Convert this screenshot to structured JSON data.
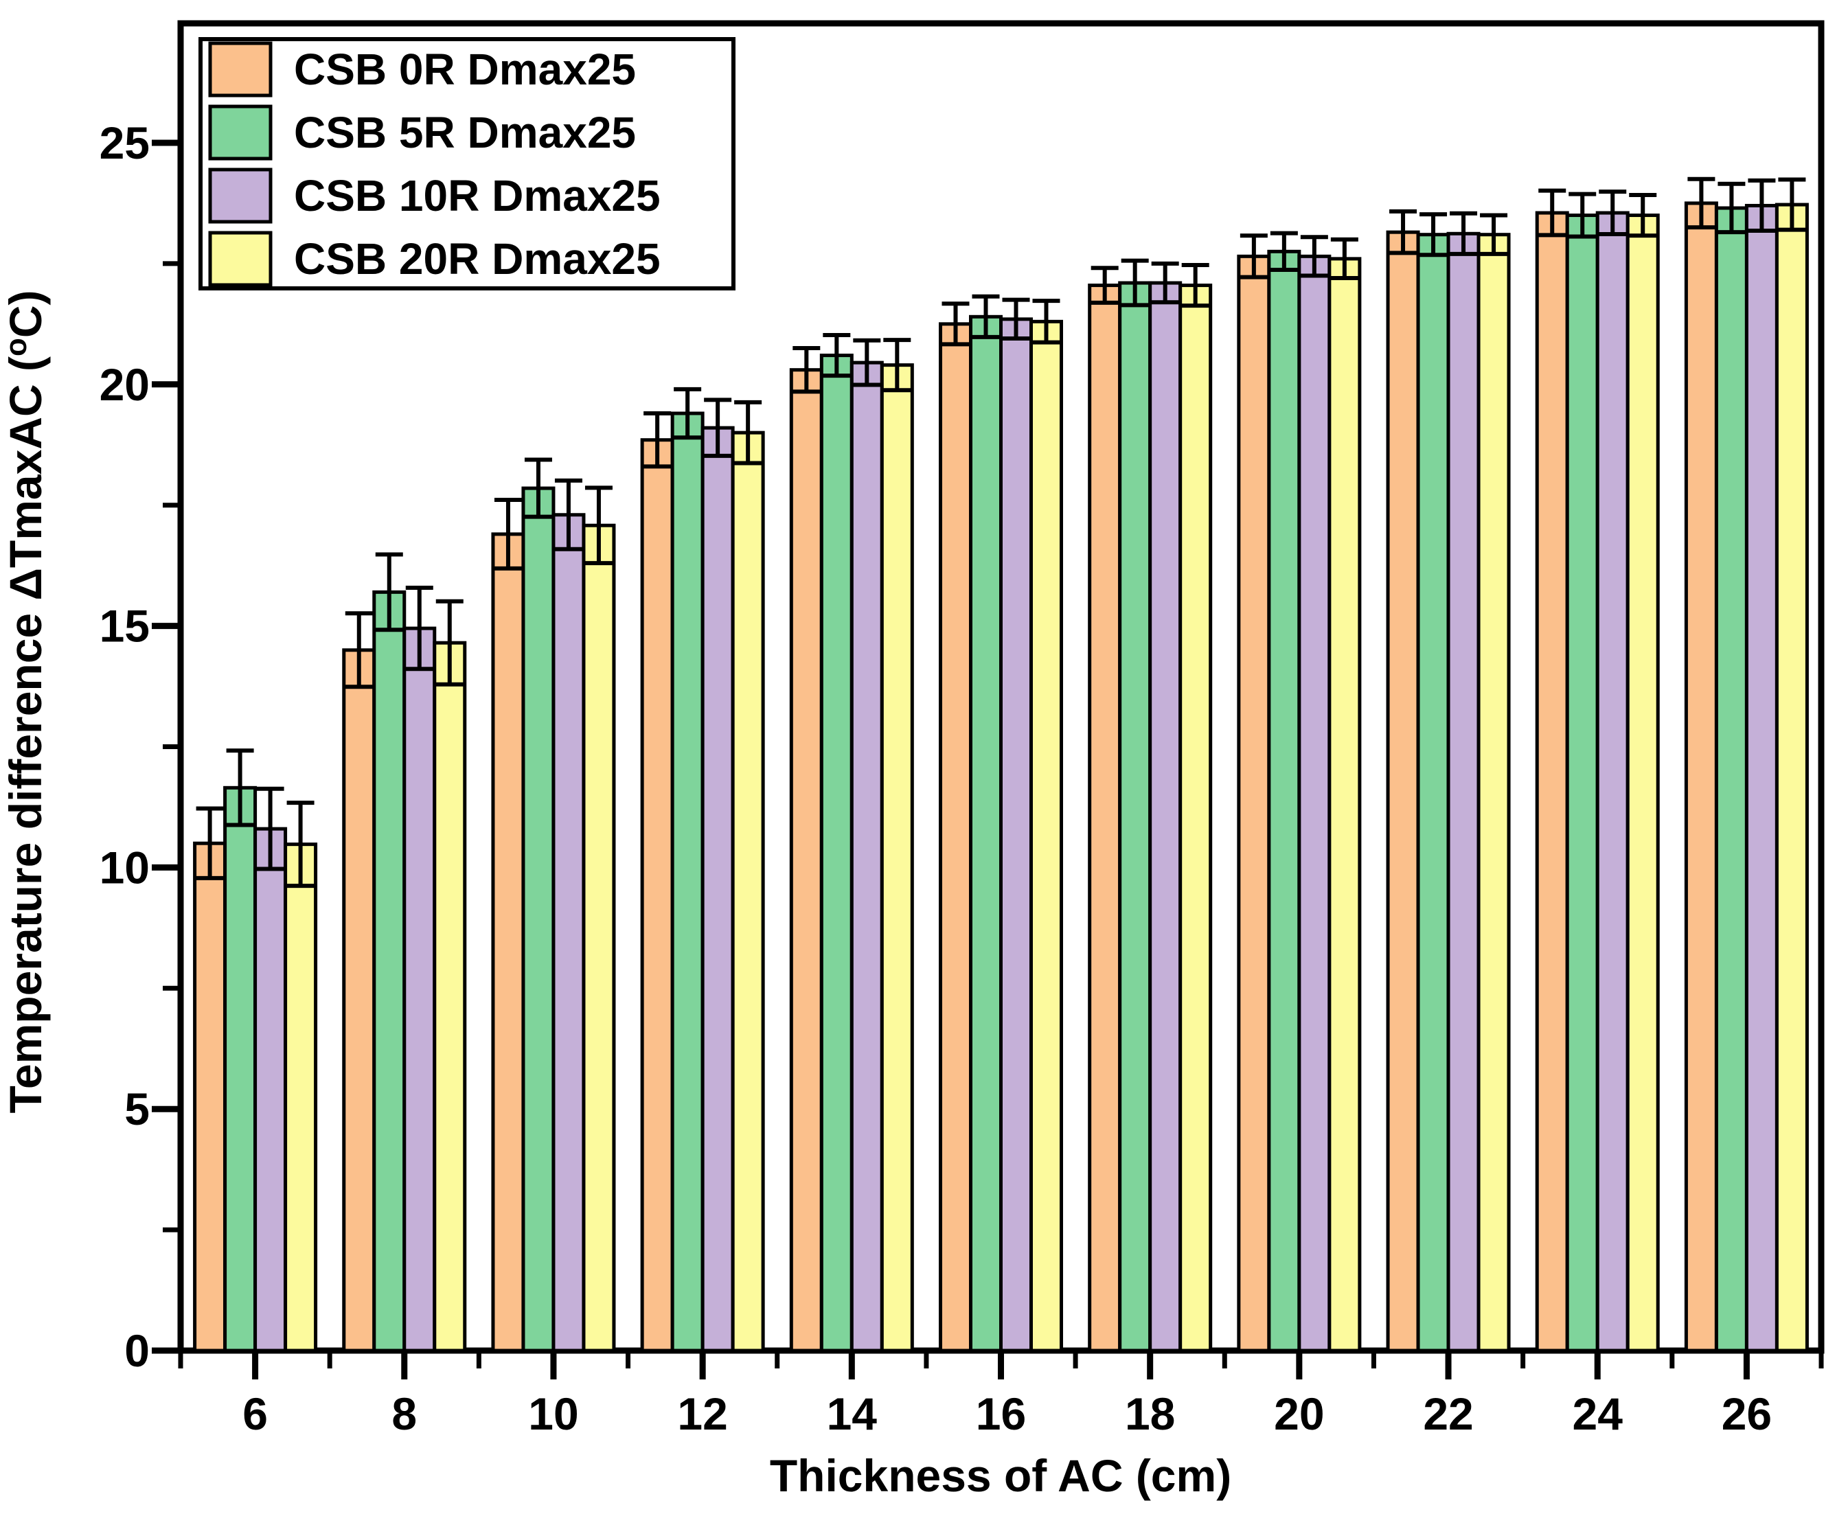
{
  "chart_data": {
    "type": "bar",
    "title": "",
    "xlabel": "Thickness of AC (cm)",
    "ylabel_prefix": "Temperature difference ΔTmaxAC (",
    "ylabel_sup": "o",
    "ylabel_suffix": "C)",
    "categories": [
      6,
      8,
      10,
      12,
      14,
      16,
      18,
      20,
      22,
      24,
      26
    ],
    "x_tick_labels": [
      "6",
      "8",
      "10",
      "12",
      "14",
      "16",
      "18",
      "20",
      "22",
      "24",
      "26"
    ],
    "y_tick_labels": [
      "0",
      "5",
      "10",
      "15",
      "20",
      "25"
    ],
    "y_ticks": [
      0,
      5,
      10,
      15,
      20,
      25
    ],
    "y_minor_ticks": [
      2.5,
      7.5,
      12.5,
      17.5,
      22.5
    ],
    "x_minor_tick_positions": [
      5,
      7,
      9,
      11,
      13,
      15,
      17,
      19,
      21,
      23,
      25,
      27
    ],
    "ylim": [
      0,
      27.4
    ],
    "grid": false,
    "legend_position": "top-left",
    "axis_color": "#000000",
    "bar_edge_color": "#000000",
    "background_color": "#ffffff",
    "series": [
      {
        "name": "CSB 0R Dmax25",
        "color": "#FBC08C",
        "values": [
          10.5,
          14.5,
          16.9,
          18.85,
          20.3,
          21.25,
          22.05,
          22.65,
          23.15,
          23.55,
          23.75
        ],
        "errors": [
          0.72,
          0.76,
          0.71,
          0.55,
          0.45,
          0.42,
          0.36,
          0.43,
          0.43,
          0.46,
          0.5
        ]
      },
      {
        "name": "CSB 5R Dmax25",
        "color": "#7FD49B",
        "values": [
          11.65,
          15.7,
          17.85,
          19.4,
          20.6,
          21.4,
          22.1,
          22.75,
          23.1,
          23.5,
          23.65
        ],
        "errors": [
          0.77,
          0.78,
          0.59,
          0.5,
          0.42,
          0.42,
          0.46,
          0.38,
          0.42,
          0.44,
          0.5
        ]
      },
      {
        "name": "CSB 10R Dmax25",
        "color": "#C5B0D8",
        "values": [
          10.8,
          14.95,
          17.3,
          19.1,
          20.45,
          21.35,
          22.1,
          22.65,
          23.12,
          23.55,
          23.7
        ],
        "errors": [
          0.83,
          0.84,
          0.71,
          0.58,
          0.46,
          0.4,
          0.4,
          0.4,
          0.42,
          0.44,
          0.52
        ]
      },
      {
        "name": "CSB 20R Dmax25",
        "color": "#FCFA9D",
        "values": [
          10.48,
          14.65,
          17.08,
          19.0,
          20.4,
          21.3,
          22.05,
          22.6,
          23.1,
          23.5,
          23.72
        ],
        "errors": [
          0.86,
          0.86,
          0.78,
          0.63,
          0.52,
          0.43,
          0.42,
          0.4,
          0.4,
          0.42,
          0.52
        ]
      }
    ]
  }
}
